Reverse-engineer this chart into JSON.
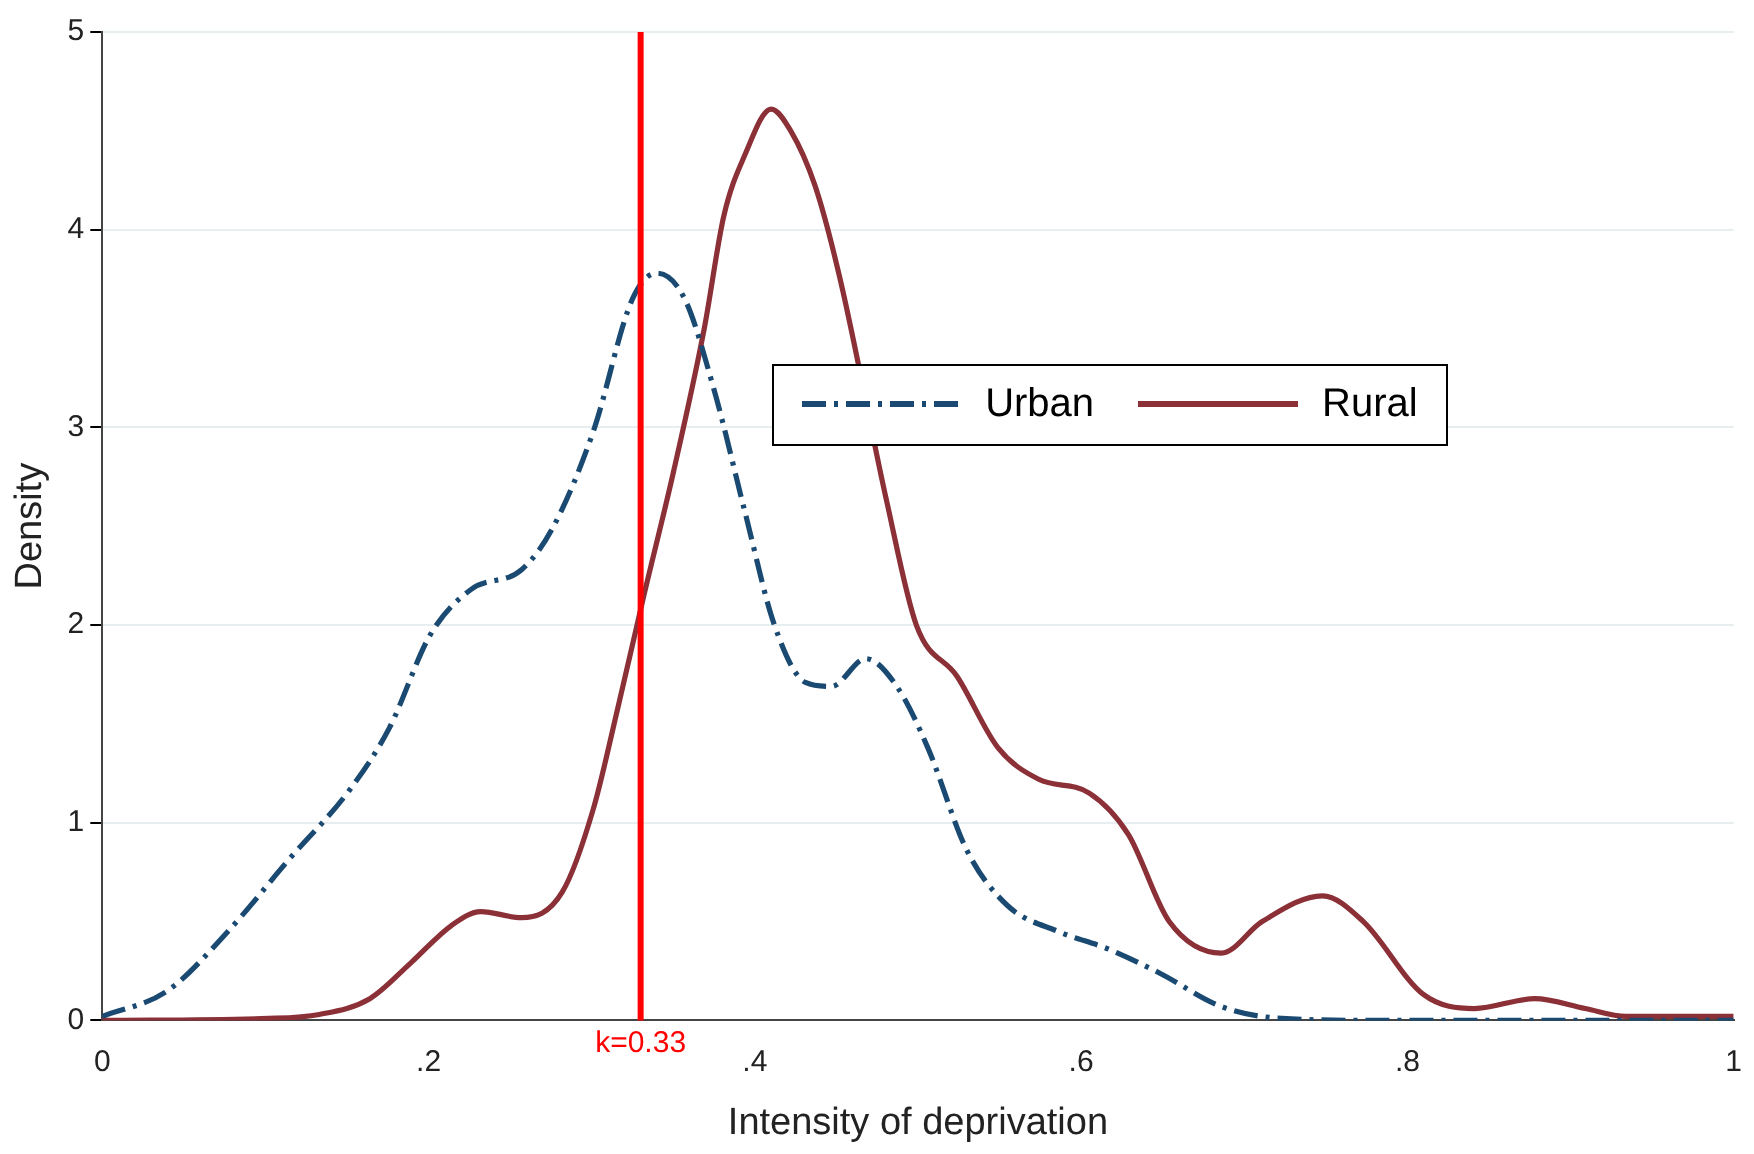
{
  "chart_data": {
    "type": "line",
    "xlabel": "Intensity of deprivation",
    "ylabel": "Density",
    "xlim": [
      0,
      1
    ],
    "xticks": [
      0,
      {
        "value": 0.2,
        "label": ".2"
      },
      {
        "value": 0.4,
        "label": ".4"
      },
      {
        "value": 0.6,
        "label": ".6"
      },
      {
        "value": 0.8,
        "label": ".8"
      },
      1
    ],
    "ylim": [
      0,
      5
    ],
    "yticks": [
      0,
      1,
      2,
      3,
      4,
      5
    ],
    "grid": "y",
    "legend": "right",
    "marker": "none",
    "ref_lines": [
      {
        "axis": "x",
        "value": 0.33,
        "label": "k=0.33",
        "color": "#ff0000"
      }
    ],
    "series": [
      {
        "name": "Urban",
        "color": "#1a4a72",
        "line_style": "dashdot",
        "x": [
          0,
          0.04,
          0.077,
          0.114,
          0.152,
          0.176,
          0.201,
          0.226,
          0.257,
          0.276,
          0.301,
          0.325,
          0.34,
          0.357,
          0.375,
          0.394,
          0.412,
          0.431,
          0.447,
          0.468,
          0.487,
          0.506,
          0.53,
          0.555,
          0.586,
          0.617,
          0.648,
          0.686,
          0.723,
          0.785,
          1
        ],
        "values": [
          0.02,
          0.15,
          0.45,
          0.81,
          1.17,
          1.48,
          1.95,
          2.18,
          2.28,
          2.49,
          2.98,
          3.65,
          3.78,
          3.65,
          3.19,
          2.57,
          2.0,
          1.71,
          1.69,
          1.83,
          1.69,
          1.38,
          0.86,
          0.58,
          0.45,
          0.36,
          0.24,
          0.07,
          0.01,
          0,
          0
        ]
      },
      {
        "name": "Rural",
        "color": "#8b3036",
        "line_style": "solid",
        "x": [
          0,
          0.102,
          0.133,
          0.164,
          0.189,
          0.214,
          0.232,
          0.257,
          0.282,
          0.301,
          0.316,
          0.332,
          0.35,
          0.369,
          0.381,
          0.394,
          0.41,
          0.422,
          0.437,
          0.452,
          0.468,
          0.481,
          0.499,
          0.524,
          0.549,
          0.574,
          0.605,
          0.629,
          0.654,
          0.686,
          0.711,
          0.748,
          0.773,
          0.81,
          0.841,
          0.878,
          0.909,
          0.934,
          1
        ],
        "values": [
          0,
          0.01,
          0.03,
          0.11,
          0.29,
          0.48,
          0.55,
          0.52,
          0.65,
          1.07,
          1.58,
          2.15,
          2.77,
          3.5,
          4.07,
          4.38,
          4.61,
          4.5,
          4.22,
          3.76,
          null,
          2.62,
          2.0,
          1.74,
          1.38,
          1.22,
          1.15,
          0.94,
          0.5,
          0.34,
          0.5,
          0.63,
          0.5,
          0.13,
          0.06,
          0.11,
          0.06,
          0.02,
          0.02
        ]
      }
    ]
  }
}
